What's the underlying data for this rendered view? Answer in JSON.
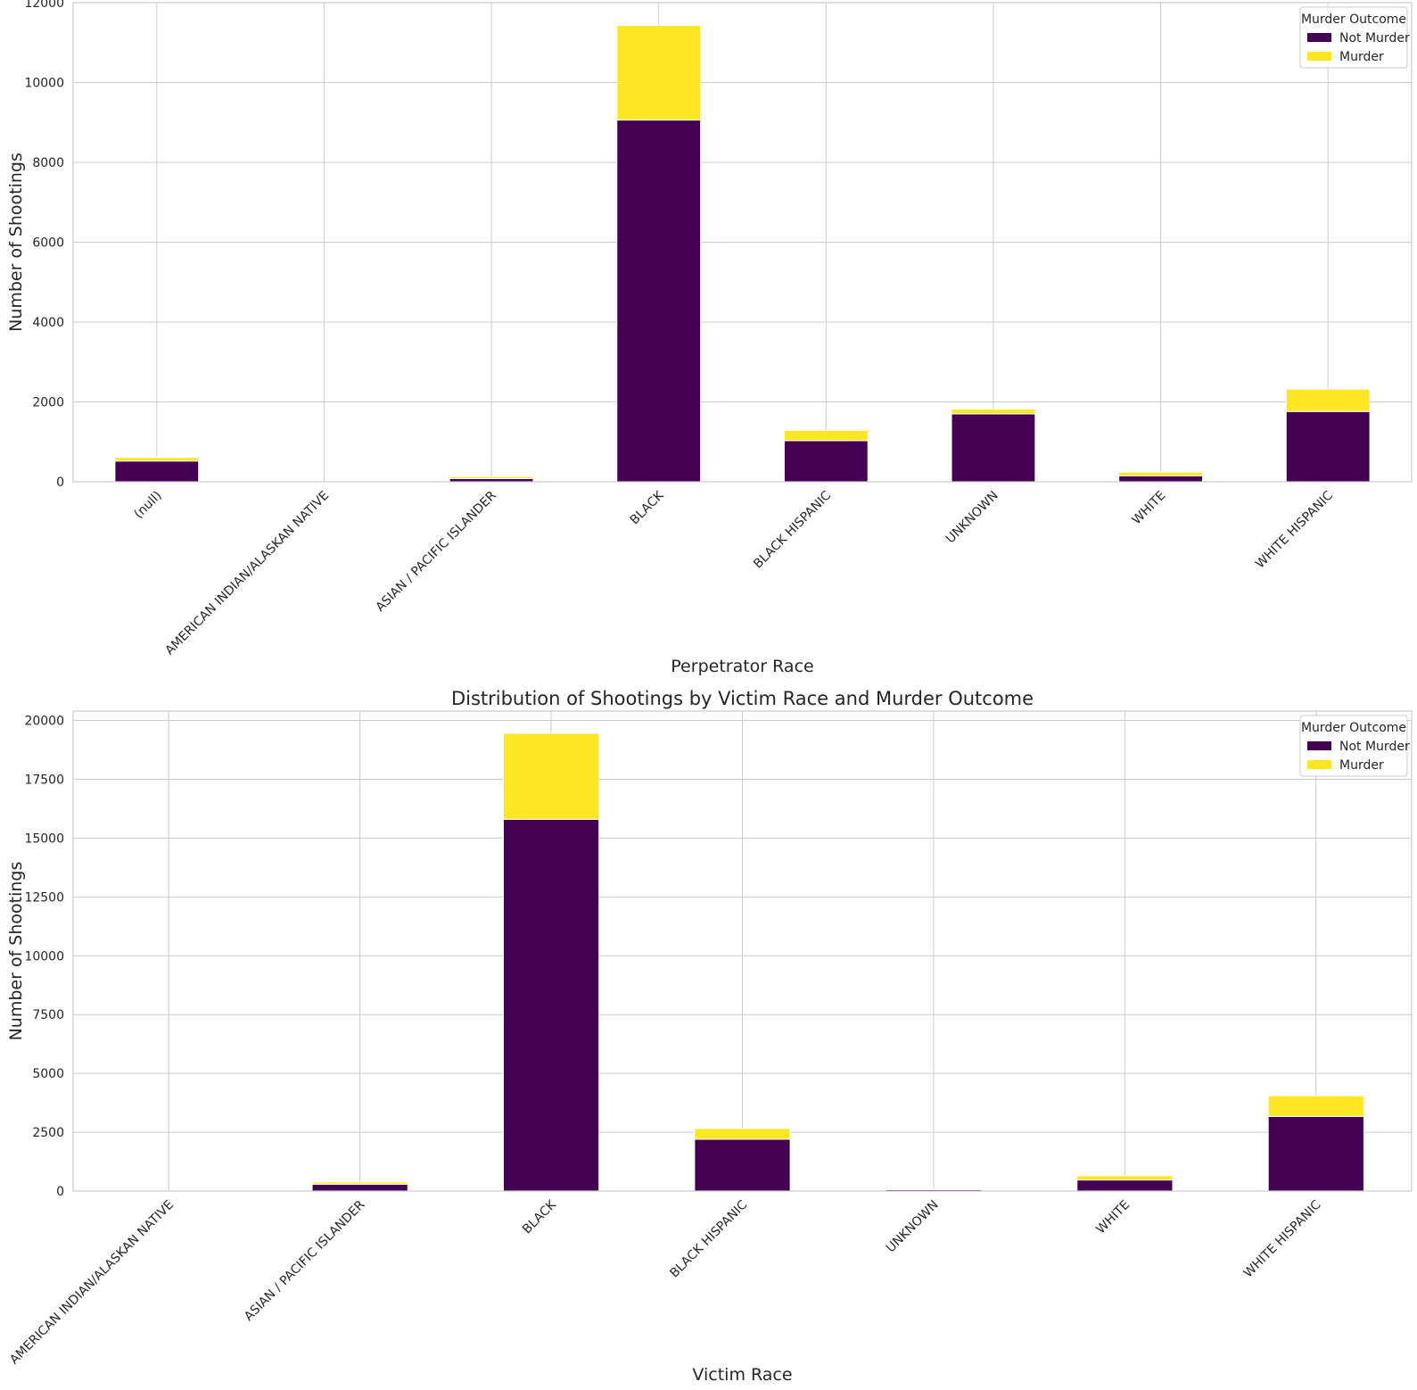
{
  "colors": {
    "not_murder": "#440154",
    "murder": "#fde725",
    "grid": "#cccccc",
    "spine": "#cccccc"
  },
  "chart_data": [
    {
      "type": "bar",
      "stacked": true,
      "title": "",
      "xlabel": "Perpetrator Race",
      "ylabel": "Number of Shootings",
      "ylim": [
        0,
        12000
      ],
      "yticks": [
        0,
        2000,
        4000,
        6000,
        8000,
        10000,
        12000
      ],
      "grid": true,
      "legend_title": "Murder Outcome",
      "legend_position": "top-right",
      "categories": [
        "(null)",
        "AMERICAN INDIAN/ALASKAN NATIVE",
        "ASIAN / PACIFIC ISLANDER",
        "BLACK",
        "BLACK HISPANIC",
        "UNKNOWN",
        "WHITE",
        "WHITE HISPANIC"
      ],
      "series": [
        {
          "name": "Not Murder",
          "values": [
            520,
            2,
            80,
            9060,
            1030,
            1700,
            150,
            1760
          ]
        },
        {
          "name": "Murder",
          "values": [
            90,
            0,
            45,
            2370,
            255,
            120,
            90,
            560
          ]
        }
      ]
    },
    {
      "type": "bar",
      "stacked": true,
      "title": "Distribution of Shootings by Victim Race and Murder Outcome",
      "xlabel": "Victim Race",
      "ylabel": "Number of Shootings",
      "ylim": [
        0,
        20400
      ],
      "yticks": [
        0,
        2500,
        5000,
        7500,
        10000,
        12500,
        15000,
        17500,
        20000
      ],
      "grid": true,
      "legend_title": "Murder Outcome",
      "legend_position": "top-right",
      "categories": [
        "AMERICAN INDIAN/ALASKAN NATIVE",
        "ASIAN / PACIFIC ISLANDER",
        "BLACK",
        "BLACK HISPANIC",
        "UNKNOWN",
        "WHITE",
        "WHITE HISPANIC"
      ],
      "series": [
        {
          "name": "Not Murder",
          "values": [
            8,
            290,
            15800,
            2200,
            60,
            470,
            3170
          ]
        },
        {
          "name": "Murder",
          "values": [
            3,
            90,
            3650,
            460,
            10,
            180,
            880
          ]
        }
      ]
    }
  ]
}
